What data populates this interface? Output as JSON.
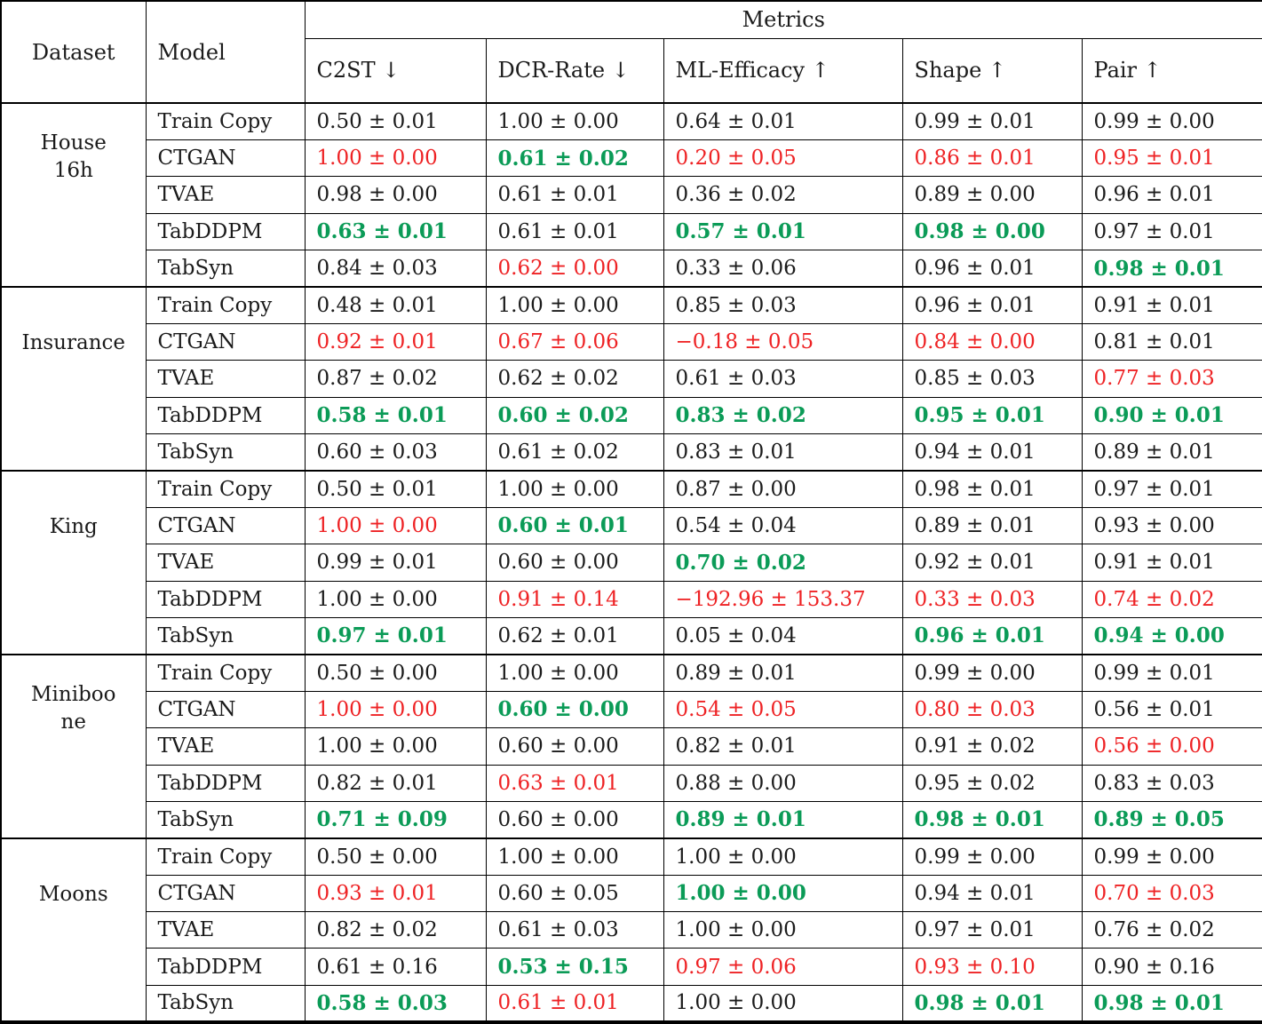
{
  "table": {
    "header": {
      "dataset_label": "Dataset",
      "model_label": "Model",
      "metrics_label": "Metrics",
      "columns": [
        "C2ST ↓",
        "DCR-Rate ↓",
        "ML-Efficacy ↑",
        "Shape ↑",
        "Pair ↑"
      ]
    },
    "colors": {
      "best_green": "#0b9b57",
      "worst_red": "#ee2224",
      "text_black": "#1b1b1b"
    },
    "groups": [
      {
        "dataset": "House 16h",
        "dataset_lines": [
          "House",
          "16h"
        ],
        "rows": [
          {
            "model": "Train Copy",
            "values": [
              {
                "t": "0.50 ± 0.01",
                "s": "normal"
              },
              {
                "t": "1.00 ± 0.00",
                "s": "normal"
              },
              {
                "t": "0.64 ± 0.01",
                "s": "normal"
              },
              {
                "t": "0.99 ± 0.01",
                "s": "normal"
              },
              {
                "t": "0.99 ± 0.00",
                "s": "normal"
              }
            ]
          },
          {
            "model": "CTGAN",
            "values": [
              {
                "t": "1.00 ± 0.00",
                "s": "worst"
              },
              {
                "t": "0.61 ± 0.02",
                "s": "best"
              },
              {
                "t": "0.20 ± 0.05",
                "s": "worst"
              },
              {
                "t": "0.86 ± 0.01",
                "s": "worst"
              },
              {
                "t": "0.95 ± 0.01",
                "s": "worst"
              }
            ]
          },
          {
            "model": "TVAE",
            "values": [
              {
                "t": "0.98 ± 0.00",
                "s": "normal"
              },
              {
                "t": "0.61 ± 0.01",
                "s": "normal"
              },
              {
                "t": "0.36 ± 0.02",
                "s": "normal"
              },
              {
                "t": "0.89 ± 0.00",
                "s": "normal"
              },
              {
                "t": "0.96 ± 0.01",
                "s": "normal"
              }
            ]
          },
          {
            "model": "TabDDPM",
            "values": [
              {
                "t": "0.63 ± 0.01",
                "s": "best"
              },
              {
                "t": "0.61 ± 0.01",
                "s": "normal"
              },
              {
                "t": "0.57 ± 0.01",
                "s": "best"
              },
              {
                "t": "0.98 ± 0.00",
                "s": "best"
              },
              {
                "t": "0.97 ± 0.01",
                "s": "normal"
              }
            ]
          },
          {
            "model": "TabSyn",
            "values": [
              {
                "t": "0.84 ± 0.03",
                "s": "normal"
              },
              {
                "t": "0.62 ± 0.00",
                "s": "worst"
              },
              {
                "t": "0.33 ± 0.06",
                "s": "normal"
              },
              {
                "t": "0.96 ± 0.01",
                "s": "normal"
              },
              {
                "t": "0.98 ± 0.01",
                "s": "best"
              }
            ]
          }
        ]
      },
      {
        "dataset": "Insurance",
        "dataset_lines": [
          "Insurance"
        ],
        "rows": [
          {
            "model": "Train Copy",
            "values": [
              {
                "t": "0.48 ± 0.01",
                "s": "normal"
              },
              {
                "t": "1.00 ± 0.00",
                "s": "normal"
              },
              {
                "t": "0.85 ± 0.03",
                "s": "normal"
              },
              {
                "t": "0.96 ± 0.01",
                "s": "normal"
              },
              {
                "t": "0.91 ± 0.01",
                "s": "normal"
              }
            ]
          },
          {
            "model": "CTGAN",
            "values": [
              {
                "t": "0.92 ± 0.01",
                "s": "worst"
              },
              {
                "t": "0.67 ± 0.06",
                "s": "worst"
              },
              {
                "t": "−0.18 ± 0.05",
                "s": "worst"
              },
              {
                "t": "0.84 ± 0.00",
                "s": "worst"
              },
              {
                "t": "0.81 ± 0.01",
                "s": "normal"
              }
            ]
          },
          {
            "model": "TVAE",
            "values": [
              {
                "t": "0.87 ± 0.02",
                "s": "normal"
              },
              {
                "t": "0.62 ± 0.02",
                "s": "normal"
              },
              {
                "t": "0.61 ± 0.03",
                "s": "normal"
              },
              {
                "t": "0.85 ± 0.03",
                "s": "normal"
              },
              {
                "t": "0.77 ± 0.03",
                "s": "worst"
              }
            ]
          },
          {
            "model": "TabDDPM",
            "values": [
              {
                "t": "0.58 ± 0.01",
                "s": "best"
              },
              {
                "t": "0.60 ± 0.02",
                "s": "best"
              },
              {
                "t": "0.83 ± 0.02",
                "s": "best"
              },
              {
                "t": "0.95 ± 0.01",
                "s": "best"
              },
              {
                "t": "0.90 ± 0.01",
                "s": "best"
              }
            ]
          },
          {
            "model": "TabSyn",
            "values": [
              {
                "t": "0.60 ± 0.03",
                "s": "normal"
              },
              {
                "t": "0.61 ± 0.02",
                "s": "normal"
              },
              {
                "t": "0.83 ± 0.01",
                "s": "normal"
              },
              {
                "t": "0.94 ± 0.01",
                "s": "normal"
              },
              {
                "t": "0.89 ± 0.01",
                "s": "normal"
              }
            ]
          }
        ]
      },
      {
        "dataset": "King",
        "dataset_lines": [
          "King"
        ],
        "rows": [
          {
            "model": "Train Copy",
            "values": [
              {
                "t": "0.50 ± 0.01",
                "s": "normal"
              },
              {
                "t": "1.00 ± 0.00",
                "s": "normal"
              },
              {
                "t": "0.87 ± 0.00",
                "s": "normal"
              },
              {
                "t": "0.98 ± 0.01",
                "s": "normal"
              },
              {
                "t": "0.97 ± 0.01",
                "s": "normal"
              }
            ]
          },
          {
            "model": "CTGAN",
            "values": [
              {
                "t": "1.00 ± 0.00",
                "s": "worst"
              },
              {
                "t": "0.60 ± 0.01",
                "s": "best"
              },
              {
                "t": "0.54 ± 0.04",
                "s": "normal"
              },
              {
                "t": "0.89 ± 0.01",
                "s": "normal"
              },
              {
                "t": "0.93 ± 0.00",
                "s": "normal"
              }
            ]
          },
          {
            "model": "TVAE",
            "values": [
              {
                "t": "0.99 ± 0.01",
                "s": "normal"
              },
              {
                "t": "0.60 ± 0.00",
                "s": "normal"
              },
              {
                "t": "0.70 ± 0.02",
                "s": "best"
              },
              {
                "t": "0.92 ± 0.01",
                "s": "normal"
              },
              {
                "t": "0.91 ± 0.01",
                "s": "normal"
              }
            ]
          },
          {
            "model": "TabDDPM",
            "values": [
              {
                "t": "1.00 ± 0.00",
                "s": "normal"
              },
              {
                "t": "0.91 ± 0.14",
                "s": "worst"
              },
              {
                "t": "−192.96 ± 153.37",
                "s": "worst"
              },
              {
                "t": "0.33 ± 0.03",
                "s": "worst"
              },
              {
                "t": "0.74 ± 0.02",
                "s": "worst"
              }
            ]
          },
          {
            "model": "TabSyn",
            "values": [
              {
                "t": "0.97 ± 0.01",
                "s": "best"
              },
              {
                "t": "0.62 ± 0.01",
                "s": "normal"
              },
              {
                "t": "0.05 ± 0.04",
                "s": "normal"
              },
              {
                "t": "0.96 ± 0.01",
                "s": "best"
              },
              {
                "t": "0.94 ± 0.00",
                "s": "best"
              }
            ]
          }
        ]
      },
      {
        "dataset": "Miniboone",
        "dataset_lines": [
          "Miniboo",
          "ne"
        ],
        "rows": [
          {
            "model": "Train Copy",
            "values": [
              {
                "t": "0.50 ± 0.00",
                "s": "normal"
              },
              {
                "t": "1.00 ± 0.00",
                "s": "normal"
              },
              {
                "t": "0.89 ± 0.01",
                "s": "normal"
              },
              {
                "t": "0.99 ± 0.00",
                "s": "normal"
              },
              {
                "t": "0.99 ± 0.01",
                "s": "normal"
              }
            ]
          },
          {
            "model": "CTGAN",
            "values": [
              {
                "t": "1.00 ± 0.00",
                "s": "worst"
              },
              {
                "t": "0.60 ± 0.00",
                "s": "best"
              },
              {
                "t": "0.54 ± 0.05",
                "s": "worst"
              },
              {
                "t": "0.80 ± 0.03",
                "s": "worst"
              },
              {
                "t": "0.56 ± 0.01",
                "s": "normal"
              }
            ]
          },
          {
            "model": "TVAE",
            "values": [
              {
                "t": "1.00 ± 0.00",
                "s": "normal"
              },
              {
                "t": "0.60 ± 0.00",
                "s": "normal"
              },
              {
                "t": "0.82 ± 0.01",
                "s": "normal"
              },
              {
                "t": "0.91 ± 0.02",
                "s": "normal"
              },
              {
                "t": "0.56 ± 0.00",
                "s": "worst"
              }
            ]
          },
          {
            "model": "TabDDPM",
            "values": [
              {
                "t": "0.82 ± 0.01",
                "s": "normal"
              },
              {
                "t": "0.63 ± 0.01",
                "s": "worst"
              },
              {
                "t": "0.88 ± 0.00",
                "s": "normal"
              },
              {
                "t": "0.95 ± 0.02",
                "s": "normal"
              },
              {
                "t": "0.83 ± 0.03",
                "s": "normal"
              }
            ]
          },
          {
            "model": "TabSyn",
            "values": [
              {
                "t": "0.71 ± 0.09",
                "s": "best"
              },
              {
                "t": "0.60 ± 0.00",
                "s": "normal"
              },
              {
                "t": "0.89 ± 0.01",
                "s": "best"
              },
              {
                "t": "0.98 ± 0.01",
                "s": "best"
              },
              {
                "t": "0.89 ± 0.05",
                "s": "best"
              }
            ]
          }
        ]
      },
      {
        "dataset": "Moons",
        "dataset_lines": [
          "Moons"
        ],
        "rows": [
          {
            "model": "Train Copy",
            "values": [
              {
                "t": "0.50 ± 0.00",
                "s": "normal"
              },
              {
                "t": "1.00 ± 0.00",
                "s": "normal"
              },
              {
                "t": "1.00 ± 0.00",
                "s": "normal"
              },
              {
                "t": "0.99 ± 0.00",
                "s": "normal"
              },
              {
                "t": "0.99 ± 0.00",
                "s": "normal"
              }
            ]
          },
          {
            "model": "CTGAN",
            "values": [
              {
                "t": "0.93 ± 0.01",
                "s": "worst"
              },
              {
                "t": "0.60 ± 0.05",
                "s": "normal"
              },
              {
                "t": "1.00 ± 0.00",
                "s": "best"
              },
              {
                "t": "0.94 ± 0.01",
                "s": "normal"
              },
              {
                "t": "0.70 ± 0.03",
                "s": "worst"
              }
            ]
          },
          {
            "model": "TVAE",
            "values": [
              {
                "t": "0.82 ± 0.02",
                "s": "normal"
              },
              {
                "t": "0.61 ± 0.03",
                "s": "normal"
              },
              {
                "t": "1.00 ± 0.00",
                "s": "normal"
              },
              {
                "t": "0.97 ± 0.01",
                "s": "normal"
              },
              {
                "t": "0.76 ± 0.02",
                "s": "normal"
              }
            ]
          },
          {
            "model": "TabDDPM",
            "values": [
              {
                "t": "0.61 ± 0.16",
                "s": "normal"
              },
              {
                "t": "0.53 ± 0.15",
                "s": "best"
              },
              {
                "t": "0.97 ± 0.06",
                "s": "worst"
              },
              {
                "t": "0.93 ± 0.10",
                "s": "worst"
              },
              {
                "t": "0.90 ± 0.16",
                "s": "normal"
              }
            ]
          },
          {
            "model": "TabSyn",
            "values": [
              {
                "t": "0.58 ± 0.03",
                "s": "best"
              },
              {
                "t": "0.61 ± 0.01",
                "s": "worst"
              },
              {
                "t": "1.00 ± 0.00",
                "s": "normal"
              },
              {
                "t": "0.98 ± 0.01",
                "s": "best"
              },
              {
                "t": "0.98 ± 0.01",
                "s": "best"
              }
            ]
          }
        ]
      }
    ]
  }
}
